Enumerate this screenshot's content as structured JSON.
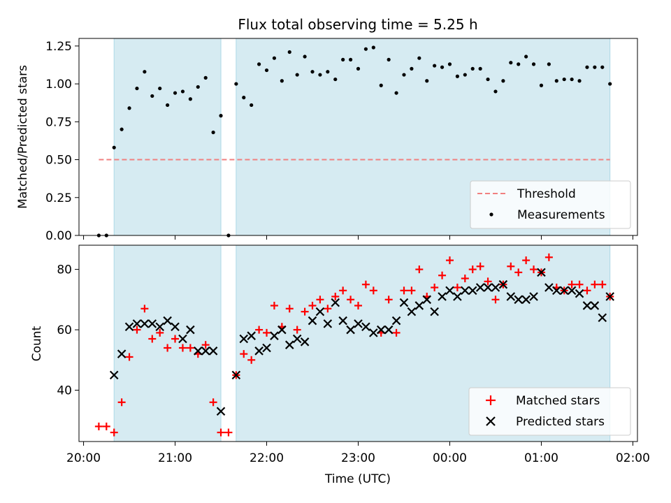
{
  "figure": {
    "title": "Flux total observing time = 5.25 h",
    "xlabel": "Time (UTC)",
    "x_tick_labels": [
      "20:00",
      "21:00",
      "22:00",
      "23:00",
      "00:00",
      "01:00",
      "02:00"
    ]
  },
  "colors": {
    "shade": "#add8e6",
    "threshold": "#f08080",
    "measurement": "#000000",
    "matched": "#ff0000",
    "predicted": "#000000"
  },
  "chart_data": [
    {
      "type": "scatter",
      "panel": "top",
      "ylabel": "Matched/Predicted stars",
      "ylim": [
        0,
        1.3
      ],
      "y_ticks": [
        0,
        0.25,
        0.5,
        0.75,
        1.0,
        1.25
      ],
      "y_tick_labels": [
        "0.00",
        "0.25",
        "0.50",
        "0.75",
        "1.00",
        "1.25"
      ],
      "xlim_hours": [
        "19:57",
        "02:03"
      ],
      "shaded_intervals": [
        [
          "20:20",
          "21:30"
        ],
        [
          "21:40",
          "01:45"
        ]
      ],
      "threshold": {
        "name": "Threshold",
        "value": 0.5,
        "x_range": [
          "20:10",
          "01:45"
        ],
        "style": "dashed"
      },
      "legend": {
        "placement": "lower right",
        "entries": [
          "Threshold",
          "Measurements"
        ]
      },
      "series": [
        {
          "name": "Measurements",
          "marker": "dot",
          "x": [
            "20:10",
            "20:15",
            "20:20",
            "20:25",
            "20:30",
            "20:35",
            "20:40",
            "20:45",
            "20:50",
            "20:55",
            "21:00",
            "21:05",
            "21:10",
            "21:15",
            "21:20",
            "21:25",
            "21:30",
            "21:35",
            "21:40",
            "21:45",
            "21:50",
            "21:55",
            "22:00",
            "22:05",
            "22:10",
            "22:15",
            "22:20",
            "22:25",
            "22:30",
            "22:35",
            "22:40",
            "22:45",
            "22:50",
            "22:55",
            "23:00",
            "23:05",
            "23:10",
            "23:15",
            "23:20",
            "23:25",
            "23:30",
            "23:35",
            "23:40",
            "23:45",
            "23:50",
            "23:55",
            "00:00",
            "00:05",
            "00:10",
            "00:15",
            "00:20",
            "00:25",
            "00:30",
            "00:35",
            "00:40",
            "00:45",
            "00:50",
            "00:55",
            "01:00",
            "01:05",
            "01:10",
            "01:15",
            "01:20",
            "01:25",
            "01:30",
            "01:35",
            "01:40",
            "01:45"
          ],
          "y": [
            0.0,
            0.0,
            0.58,
            0.7,
            0.84,
            0.97,
            1.08,
            0.92,
            0.97,
            0.86,
            0.94,
            0.95,
            0.9,
            0.98,
            1.04,
            0.68,
            0.79,
            0.0,
            1.0,
            0.91,
            0.86,
            1.13,
            1.09,
            1.17,
            1.02,
            1.21,
            1.06,
            1.18,
            1.08,
            1.06,
            1.08,
            1.03,
            1.16,
            1.16,
            1.1,
            1.23,
            1.24,
            0.99,
            1.16,
            0.94,
            1.06,
            1.1,
            1.17,
            1.02,
            1.12,
            1.11,
            1.13,
            1.05,
            1.06,
            1.1,
            1.1,
            1.03,
            0.95,
            1.02,
            1.14,
            1.13,
            1.18,
            1.13,
            0.99,
            1.13,
            1.02,
            1.03,
            1.03,
            1.02,
            1.11,
            1.11,
            1.11,
            1.0
          ]
        }
      ]
    },
    {
      "type": "scatter",
      "panel": "bottom",
      "ylabel": "Count",
      "ylim": [
        23,
        88
      ],
      "y_ticks": [
        40,
        60,
        80
      ],
      "y_tick_labels": [
        "40",
        "60",
        "80"
      ],
      "xlim_hours": [
        "19:57",
        "02:03"
      ],
      "shaded_intervals": [
        [
          "20:20",
          "21:30"
        ],
        [
          "21:40",
          "01:45"
        ]
      ],
      "legend": {
        "placement": "lower right",
        "entries": [
          "Matched stars",
          "Predicted stars"
        ]
      },
      "series": [
        {
          "name": "Matched stars",
          "marker": "+",
          "x": [
            "20:10",
            "20:15",
            "20:20",
            "20:25",
            "20:30",
            "20:35",
            "20:40",
            "20:45",
            "20:50",
            "20:55",
            "21:00",
            "21:05",
            "21:10",
            "21:15",
            "21:20",
            "21:25",
            "21:30",
            "21:35",
            "21:40",
            "21:45",
            "21:50",
            "21:55",
            "22:00",
            "22:05",
            "22:10",
            "22:15",
            "22:20",
            "22:25",
            "22:30",
            "22:35",
            "22:40",
            "22:45",
            "22:50",
            "22:55",
            "23:00",
            "23:05",
            "23:10",
            "23:15",
            "23:20",
            "23:25",
            "23:30",
            "23:35",
            "23:40",
            "23:45",
            "23:50",
            "23:55",
            "00:00",
            "00:05",
            "00:10",
            "00:15",
            "00:20",
            "00:25",
            "00:30",
            "00:35",
            "00:40",
            "00:45",
            "00:50",
            "00:55",
            "01:00",
            "01:05",
            "01:10",
            "01:15",
            "01:20",
            "01:25",
            "01:30",
            "01:35",
            "01:40",
            "01:45"
          ],
          "y": [
            28,
            28,
            26,
            36,
            51,
            60,
            67,
            57,
            59,
            54,
            57,
            54,
            54,
            52,
            55,
            36,
            26,
            26,
            45,
            52,
            50,
            60,
            59,
            68,
            61,
            67,
            60,
            66,
            68,
            70,
            67,
            71,
            73,
            70,
            68,
            75,
            73,
            59,
            70,
            59,
            73,
            73,
            80,
            71,
            74,
            78,
            83,
            74,
            77,
            80,
            81,
            76,
            70,
            75,
            81,
            79,
            83,
            80,
            79,
            84,
            74,
            73,
            75,
            75,
            73,
            75,
            75,
            71
          ]
        },
        {
          "name": "Predicted stars",
          "marker": "x",
          "x": [
            "20:20",
            "20:25",
            "20:30",
            "20:35",
            "20:40",
            "20:45",
            "20:50",
            "20:55",
            "21:00",
            "21:05",
            "21:10",
            "21:15",
            "21:20",
            "21:25",
            "21:30",
            "21:40",
            "21:45",
            "21:50",
            "21:55",
            "22:00",
            "22:05",
            "22:10",
            "22:15",
            "22:20",
            "22:25",
            "22:30",
            "22:35",
            "22:40",
            "22:45",
            "22:50",
            "22:55",
            "23:00",
            "23:05",
            "23:10",
            "23:15",
            "23:20",
            "23:25",
            "23:30",
            "23:35",
            "23:40",
            "23:45",
            "23:50",
            "23:55",
            "00:00",
            "00:05",
            "00:10",
            "00:15",
            "00:20",
            "00:25",
            "00:30",
            "00:35",
            "00:40",
            "00:45",
            "00:50",
            "00:55",
            "01:00",
            "01:05",
            "01:10",
            "01:15",
            "01:20",
            "01:25",
            "01:30",
            "01:35",
            "01:40",
            "01:45"
          ],
          "y": [
            45,
            52,
            61,
            62,
            62,
            62,
            61,
            63,
            61,
            57,
            60,
            53,
            53,
            53,
            33,
            45,
            57,
            58,
            53,
            54,
            58,
            60,
            55,
            57,
            56,
            63,
            66,
            62,
            69,
            63,
            60,
            62,
            61,
            59,
            60,
            60,
            63,
            69,
            66,
            68,
            70,
            66,
            71,
            73,
            71,
            73,
            73,
            74,
            74,
            74,
            75,
            71,
            70,
            70,
            71,
            79,
            74,
            73,
            73,
            73,
            72,
            68,
            68,
            64,
            71
          ]
        }
      ]
    }
  ]
}
